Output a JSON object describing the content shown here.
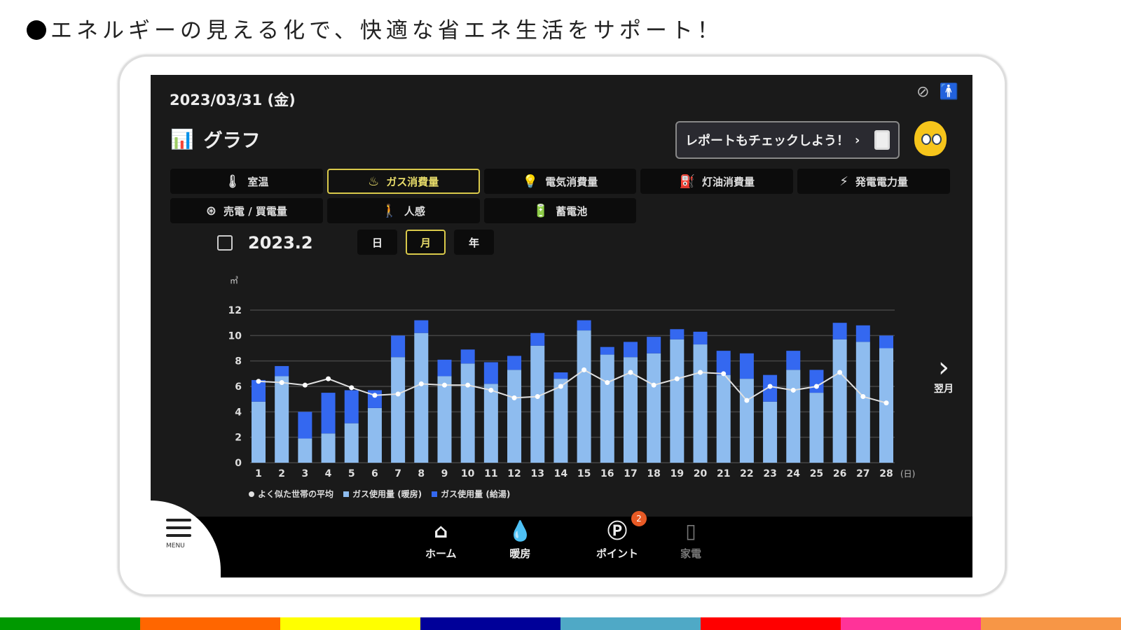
{
  "headline": "エネルギーの見える化で、快適な省エネ生活をサポート！",
  "app": {
    "date": "2023/03/31 (金)",
    "title": "グラフ",
    "report_bubble": "レポートもチェックしよう！",
    "tabs": [
      {
        "label": "室温",
        "icon": "thermometer-icon",
        "glyph": "🌡"
      },
      {
        "label": "ガス消費量",
        "icon": "gas-flame-icon",
        "glyph": "♨",
        "active": true
      },
      {
        "label": "電気消費量",
        "icon": "lightbulb-icon",
        "glyph": "💡"
      },
      {
        "label": "灯油消費量",
        "icon": "kerosene-icon",
        "glyph": "⛽"
      },
      {
        "label": "発電電力量",
        "icon": "power-generation-icon",
        "glyph": "⚡"
      },
      {
        "label": "売電 / 買電量",
        "icon": "sell-buy-icon",
        "glyph": "⊛"
      },
      {
        "label": "人感",
        "icon": "motion-sensor-icon",
        "glyph": "🚶"
      },
      {
        "label": "蓄電池",
        "icon": "battery-icon",
        "glyph": "🔋"
      }
    ],
    "period": "2023.2",
    "period_buttons": [
      {
        "label": "日"
      },
      {
        "label": "月",
        "active": true
      },
      {
        "label": "年"
      }
    ],
    "next_label": "翌月",
    "menu_label": "MENU",
    "nav": [
      {
        "label": "ホーム",
        "icon": "home-icon",
        "glyph": "⌂"
      },
      {
        "label": "暖房",
        "icon": "heating-drop-icon",
        "glyph": "💧"
      },
      {
        "label": "ポイント",
        "icon": "points-icon",
        "glyph": "Ⓟ",
        "badge": "2"
      },
      {
        "label": "家電",
        "icon": "appliance-icon",
        "glyph": "▯",
        "disabled": true
      }
    ]
  },
  "chart_data": {
    "type": "bar",
    "stacked": true,
    "ylabel": "㎥",
    "xunit": "(日)",
    "ylim": [
      0,
      12
    ],
    "yticks": [
      0,
      2,
      4,
      6,
      8,
      10,
      12
    ],
    "grid": true,
    "legend_position": "bottom-left",
    "categories": [
      "1",
      "2",
      "3",
      "4",
      "5",
      "6",
      "7",
      "8",
      "9",
      "10",
      "11",
      "12",
      "13",
      "14",
      "15",
      "16",
      "17",
      "18",
      "19",
      "20",
      "21",
      "22",
      "23",
      "24",
      "25",
      "26",
      "27",
      "28"
    ],
    "series": [
      {
        "name": "ガス使用量 (暖房)",
        "type": "bar",
        "color": "#8ebcef",
        "values": [
          4.8,
          6.8,
          1.9,
          2.3,
          3.1,
          4.3,
          8.3,
          10.2,
          6.8,
          7.8,
          6.2,
          7.3,
          9.2,
          6.6,
          10.4,
          8.5,
          8.3,
          8.6,
          9.7,
          9.3,
          6.9,
          6.6,
          4.8,
          7.3,
          5.5,
          9.7,
          9.5,
          9.0
        ]
      },
      {
        "name": "ガス使用量 (給湯)",
        "type": "bar",
        "color": "#3468f0",
        "values": [
          1.7,
          0.8,
          2.1,
          3.2,
          2.6,
          1.4,
          1.7,
          1.0,
          1.3,
          1.1,
          1.7,
          1.1,
          1.0,
          0.5,
          0.8,
          0.6,
          1.2,
          1.3,
          0.8,
          1.0,
          1.9,
          2.0,
          2.1,
          1.5,
          1.8,
          1.3,
          1.3,
          1.0
        ]
      },
      {
        "name": "よく似た世帯の平均",
        "type": "line",
        "color": "#e0e0e0",
        "values": [
          6.4,
          6.3,
          6.1,
          6.6,
          5.9,
          5.3,
          5.4,
          6.2,
          6.1,
          6.1,
          5.7,
          5.1,
          5.2,
          6.0,
          7.3,
          6.3,
          7.1,
          6.1,
          6.6,
          7.1,
          7.0,
          4.9,
          6.0,
          5.7,
          6.0,
          7.1,
          5.2,
          4.7
        ]
      }
    ]
  },
  "colors": {
    "accent": "#d9c94a",
    "badge": "#e85a25",
    "stripe": [
      "#009900",
      "#ff6600",
      "#ffff00",
      "#000099",
      "#4fa9c6",
      "#ff0000",
      "#ff3399",
      "#f79646"
    ]
  }
}
